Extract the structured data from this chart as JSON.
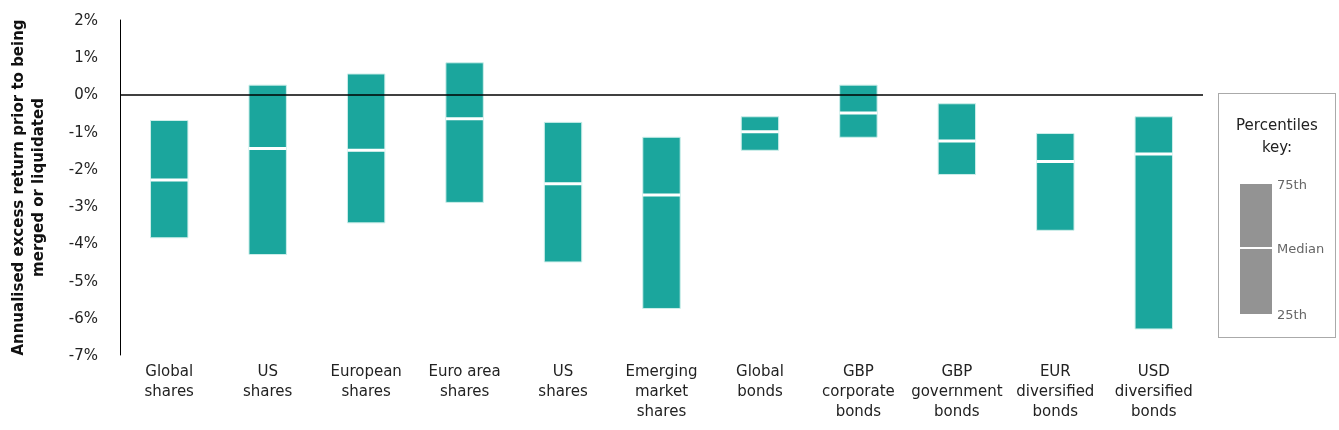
{
  "chart_data": {
    "type": "box",
    "ylabel": "Annualised excess return prior to being\nmerged or liquidated",
    "legend_title": "Percentiles key:",
    "annotations": [
      "75th",
      "Median",
      "25th"
    ],
    "categories": [
      "Global\nshares",
      "US\nshares",
      "European\nshares",
      "Euro area\nshares",
      "US\nshares",
      "Emerging\nmarket\nshares",
      "Global\nbonds",
      "GBP\ncorporate\nbonds",
      "GBP\ngovernment\nbonds",
      "EUR\ndiversified\nbonds",
      "USD\ndiversified\nbonds"
    ],
    "color": "#1ba69d",
    "boxes": [
      {
        "low": -3.85,
        "q1": -3.85,
        "median": -2.3,
        "q3": -0.7,
        "high": -0.7
      },
      {
        "low": -4.3,
        "q1": -4.3,
        "median": -1.45,
        "q3": 0.25,
        "high": 0.25
      },
      {
        "low": -3.45,
        "q1": -3.45,
        "median": -1.5,
        "q3": 0.55,
        "high": 0.55
      },
      {
        "low": -2.9,
        "q1": -2.9,
        "median": -0.65,
        "q3": 0.85,
        "high": 0.85
      },
      {
        "low": -4.5,
        "q1": -4.5,
        "median": -2.4,
        "q3": -0.75,
        "high": -0.75
      },
      {
        "low": -5.75,
        "q1": -5.75,
        "median": -2.7,
        "q3": -1.15,
        "high": -1.15
      },
      {
        "low": -1.5,
        "q1": -1.5,
        "median": -1.0,
        "q3": -0.6,
        "high": -0.6
      },
      {
        "low": -1.15,
        "q1": -1.15,
        "median": -0.5,
        "q3": 0.25,
        "high": 0.25
      },
      {
        "low": -2.15,
        "q1": -2.15,
        "median": -1.25,
        "q3": -0.25,
        "high": -0.25
      },
      {
        "low": -3.65,
        "q1": -3.65,
        "median": -1.8,
        "q3": -1.05,
        "high": -1.05
      },
      {
        "low": -6.3,
        "q1": -6.3,
        "median": -1.6,
        "q3": -0.6,
        "high": -0.6
      }
    ],
    "ylim": [
      -7,
      2
    ],
    "yticks": [
      {
        "value": 2,
        "label": "2%"
      },
      {
        "value": 1,
        "label": "1%"
      },
      {
        "value": 0,
        "label": "0%"
      },
      {
        "value": -1,
        "label": "-1%"
      },
      {
        "value": -2,
        "label": "-2%"
      },
      {
        "value": -3,
        "label": "-3%"
      },
      {
        "value": -4,
        "label": "-4%"
      },
      {
        "value": -5,
        "label": "-5%"
      },
      {
        "value": -6,
        "label": "-6%"
      },
      {
        "value": -7,
        "label": "-7%"
      }
    ],
    "ref_lines": [
      {
        "axis": "y",
        "value": 0,
        "color": "#000000"
      }
    ],
    "grid": false
  }
}
